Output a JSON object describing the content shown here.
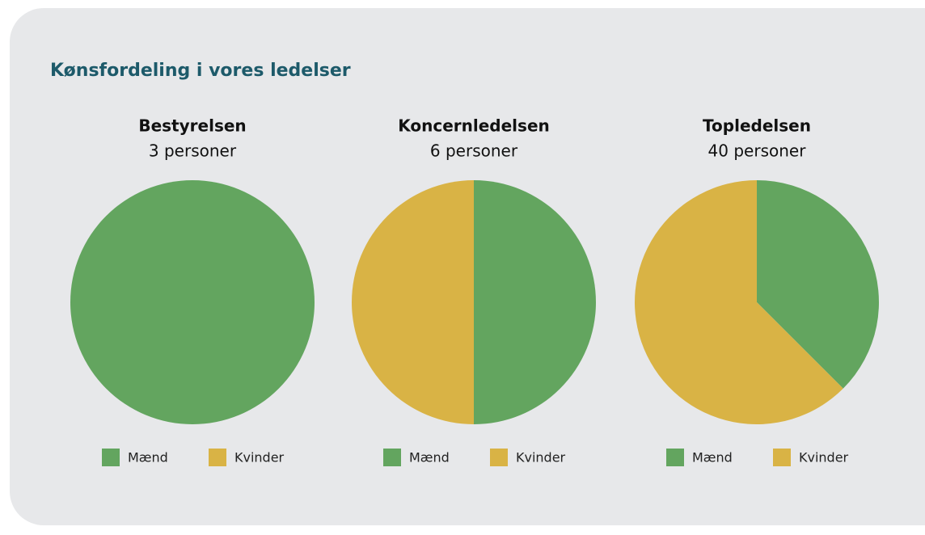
{
  "header": {
    "title": "Kønsfordeling i vores ledelser"
  },
  "chart_data": [
    {
      "type": "pie",
      "title": "Bestyrelsen",
      "subtitle": "3 personer",
      "categories": [
        "Mænd",
        "Kvinder"
      ],
      "values": [
        3,
        0
      ],
      "colors": [
        "#63a55f",
        "#d9b345"
      ]
    },
    {
      "type": "pie",
      "title": "Koncernledelsen",
      "subtitle": "6 personer",
      "categories": [
        "Mænd",
        "Kvinder"
      ],
      "values": [
        3,
        3
      ],
      "colors": [
        "#63a55f",
        "#d9b345"
      ]
    },
    {
      "type": "pie",
      "title": "Topledelsen",
      "subtitle": "40 personer",
      "categories": [
        "Mænd",
        "Kvinder"
      ],
      "values": [
        15,
        25
      ],
      "colors": [
        "#63a55f",
        "#d9b345"
      ]
    }
  ]
}
